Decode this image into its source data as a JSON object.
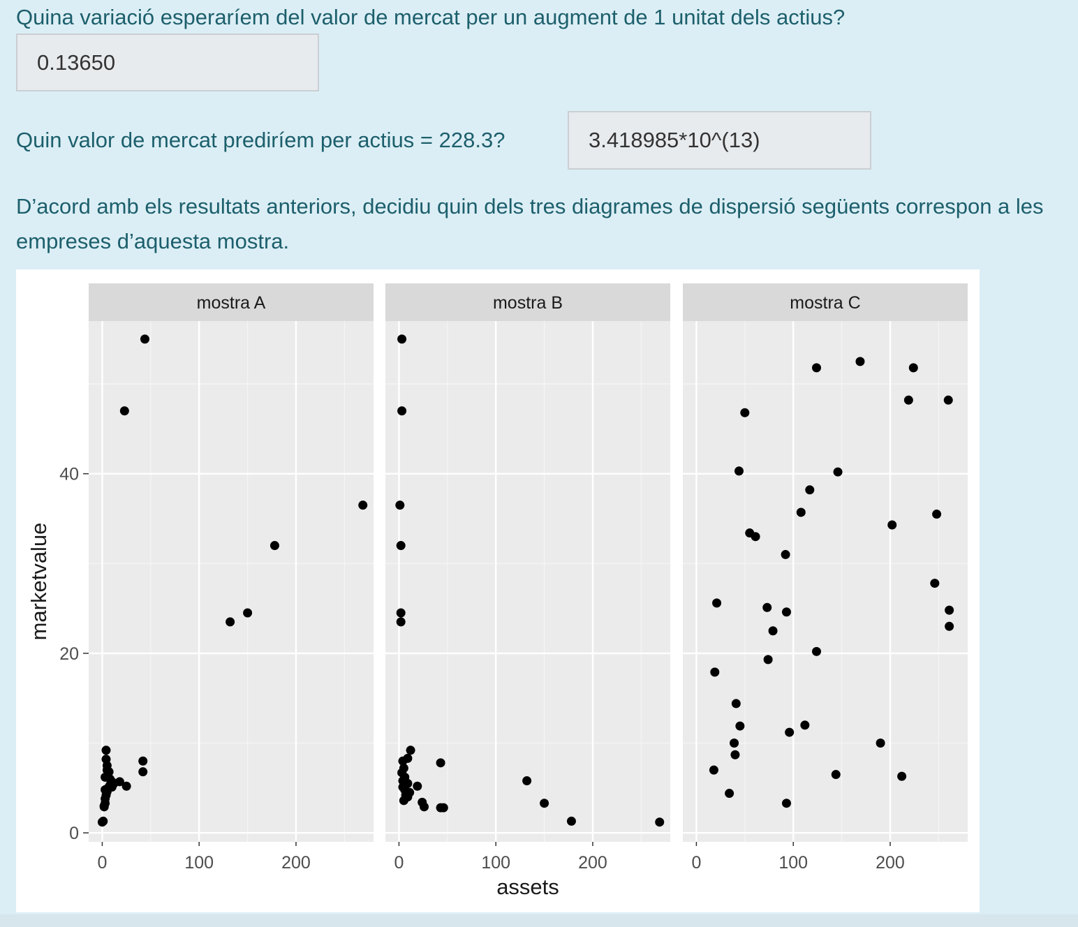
{
  "question1": {
    "text": "Quina variació esperaríem del valor de mercat per un augment de 1 unitat dels actius?",
    "answer": "0.13650"
  },
  "question2": {
    "text": "Quin valor de mercat prediríem per actius = 228.3?",
    "answer": "3.418985*10^(13)"
  },
  "question3": {
    "text": "D’acord amb els resultats anteriors, decidiu quin dels tres diagrames de dispersió següents correspon a les empreses d’aquesta mostra."
  },
  "chart_data": {
    "type": "scatter",
    "xlabel": "assets",
    "ylabel": "marketvalue",
    "xlim": [
      -14,
      280
    ],
    "ylim": [
      -1,
      57
    ],
    "x_ticks": [
      0,
      100,
      200
    ],
    "y_ticks": [
      0,
      20,
      40
    ],
    "grid": true,
    "panels": [
      {
        "title": "mostra A",
        "points": [
          [
            44,
            55
          ],
          [
            23,
            47
          ],
          [
            269,
            36.5
          ],
          [
            178,
            32
          ],
          [
            150,
            24.5
          ],
          [
            132,
            23.5
          ],
          [
            42,
            8
          ],
          [
            42,
            6.8
          ],
          [
            25,
            5.2
          ],
          [
            18,
            5.7
          ],
          [
            4,
            9.2
          ],
          [
            4,
            8.2
          ],
          [
            5,
            7.5
          ],
          [
            5,
            7
          ],
          [
            7,
            6.8
          ],
          [
            3,
            6.2
          ],
          [
            8,
            6
          ],
          [
            10,
            5.7
          ],
          [
            12,
            5.5
          ],
          [
            8,
            5.3
          ],
          [
            10,
            5.1
          ],
          [
            6,
            5
          ],
          [
            3,
            4.8
          ],
          [
            5,
            4.6
          ],
          [
            4,
            4.2
          ],
          [
            3,
            3.8
          ],
          [
            3,
            3.3
          ],
          [
            2,
            3
          ],
          [
            2,
            2.9
          ],
          [
            1,
            1.3
          ],
          [
            0,
            1.2
          ]
        ]
      },
      {
        "title": "mostra B",
        "points": [
          [
            3,
            55
          ],
          [
            3,
            47
          ],
          [
            1,
            36.5
          ],
          [
            2,
            32
          ],
          [
            2,
            24.5
          ],
          [
            2,
            23.5
          ],
          [
            43,
            7.8
          ],
          [
            12,
            9.2
          ],
          [
            9,
            8.3
          ],
          [
            4,
            8
          ],
          [
            5,
            7.2
          ],
          [
            3,
            6.7
          ],
          [
            6,
            6.2
          ],
          [
            4,
            5.8
          ],
          [
            9,
            5.5
          ],
          [
            19,
            5.2
          ],
          [
            4,
            5.1
          ],
          [
            6,
            4.8
          ],
          [
            11,
            4.5
          ],
          [
            7,
            4.2
          ],
          [
            9,
            4
          ],
          [
            5,
            3.6
          ],
          [
            24,
            3.4
          ],
          [
            26,
            2.9
          ],
          [
            43,
            2.8
          ],
          [
            46,
            2.8
          ],
          [
            132,
            5.8
          ],
          [
            150,
            3.3
          ],
          [
            178,
            1.3
          ],
          [
            269,
            1.2
          ]
        ]
      },
      {
        "title": "mostra C",
        "points": [
          [
            169,
            52.5
          ],
          [
            124,
            51.8
          ],
          [
            224,
            51.8
          ],
          [
            50,
            46.8
          ],
          [
            219,
            48.2
          ],
          [
            260,
            48.2
          ],
          [
            44,
            40.3
          ],
          [
            146,
            40.2
          ],
          [
            117,
            38.2
          ],
          [
            108,
            35.7
          ],
          [
            202,
            34.3
          ],
          [
            248,
            35.5
          ],
          [
            55,
            33.4
          ],
          [
            61,
            33
          ],
          [
            92,
            31
          ],
          [
            246,
            27.8
          ],
          [
            21,
            25.6
          ],
          [
            73,
            25.1
          ],
          [
            93,
            24.6
          ],
          [
            261,
            24.8
          ],
          [
            79,
            22.5
          ],
          [
            261,
            23
          ],
          [
            124,
            20.2
          ],
          [
            74,
            19.3
          ],
          [
            19,
            17.9
          ],
          [
            41,
            14.4
          ],
          [
            45,
            11.9
          ],
          [
            112,
            12
          ],
          [
            96,
            11.2
          ],
          [
            39,
            10
          ],
          [
            190,
            10
          ],
          [
            40,
            8.7
          ],
          [
            18,
            7
          ],
          [
            144,
            6.5
          ],
          [
            212,
            6.3
          ],
          [
            34,
            4.4
          ],
          [
            93,
            3.3
          ]
        ]
      }
    ]
  }
}
